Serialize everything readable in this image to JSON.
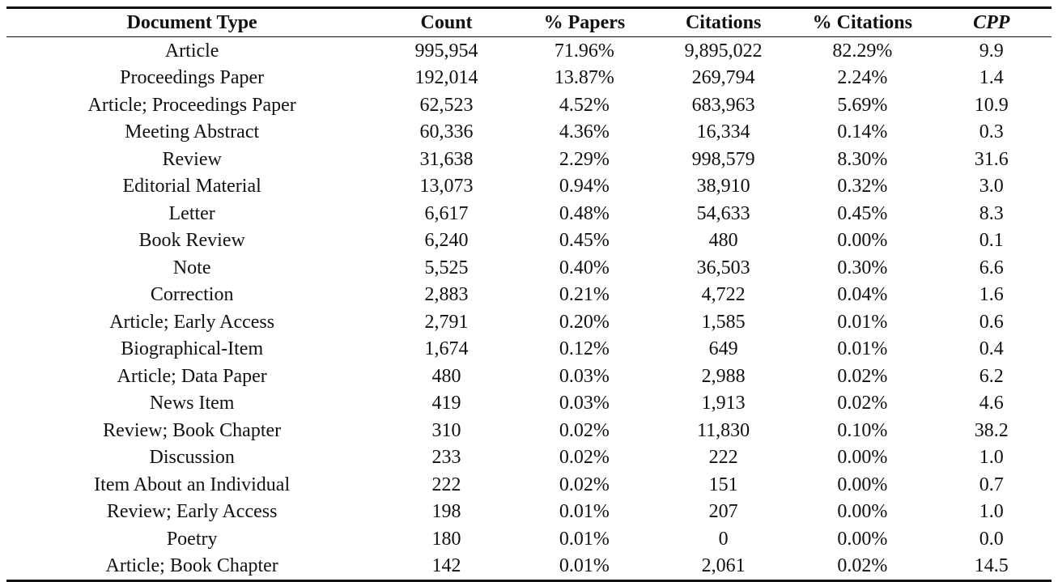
{
  "table": {
    "headers": {
      "type": "Document Type",
      "count": "Count",
      "pct_papers": "% Papers",
      "citations": "Citations",
      "pct_citations": "% Citations",
      "cpp": "CPP"
    },
    "rows": [
      {
        "type": "Article",
        "count": "995,954",
        "pct_papers": "71.96%",
        "citations": "9,895,022",
        "pct_citations": "82.29%",
        "cpp": "9.9"
      },
      {
        "type": "Proceedings Paper",
        "count": "192,014",
        "pct_papers": "13.87%",
        "citations": "269,794",
        "pct_citations": "2.24%",
        "cpp": "1.4"
      },
      {
        "type": "Article; Proceedings Paper",
        "count": "62,523",
        "pct_papers": "4.52%",
        "citations": "683,963",
        "pct_citations": "5.69%",
        "cpp": "10.9"
      },
      {
        "type": "Meeting Abstract",
        "count": "60,336",
        "pct_papers": "4.36%",
        "citations": "16,334",
        "pct_citations": "0.14%",
        "cpp": "0.3"
      },
      {
        "type": "Review",
        "count": "31,638",
        "pct_papers": "2.29%",
        "citations": "998,579",
        "pct_citations": "8.30%",
        "cpp": "31.6"
      },
      {
        "type": "Editorial Material",
        "count": "13,073",
        "pct_papers": "0.94%",
        "citations": "38,910",
        "pct_citations": "0.32%",
        "cpp": "3.0"
      },
      {
        "type": "Letter",
        "count": "6,617",
        "pct_papers": "0.48%",
        "citations": "54,633",
        "pct_citations": "0.45%",
        "cpp": "8.3"
      },
      {
        "type": "Book Review",
        "count": "6,240",
        "pct_papers": "0.45%",
        "citations": "480",
        "pct_citations": "0.00%",
        "cpp": "0.1"
      },
      {
        "type": "Note",
        "count": "5,525",
        "pct_papers": "0.40%",
        "citations": "36,503",
        "pct_citations": "0.30%",
        "cpp": "6.6"
      },
      {
        "type": "Correction",
        "count": "2,883",
        "pct_papers": "0.21%",
        "citations": "4,722",
        "pct_citations": "0.04%",
        "cpp": "1.6"
      },
      {
        "type": "Article; Early Access",
        "count": "2,791",
        "pct_papers": "0.20%",
        "citations": "1,585",
        "pct_citations": "0.01%",
        "cpp": "0.6"
      },
      {
        "type": "Biographical-Item",
        "count": "1,674",
        "pct_papers": "0.12%",
        "citations": "649",
        "pct_citations": "0.01%",
        "cpp": "0.4"
      },
      {
        "type": "Article; Data Paper",
        "count": "480",
        "pct_papers": "0.03%",
        "citations": "2,988",
        "pct_citations": "0.02%",
        "cpp": "6.2"
      },
      {
        "type": "News Item",
        "count": "419",
        "pct_papers": "0.03%",
        "citations": "1,913",
        "pct_citations": "0.02%",
        "cpp": "4.6"
      },
      {
        "type": "Review; Book Chapter",
        "count": "310",
        "pct_papers": "0.02%",
        "citations": "11,830",
        "pct_citations": "0.10%",
        "cpp": "38.2"
      },
      {
        "type": "Discussion",
        "count": "233",
        "pct_papers": "0.02%",
        "citations": "222",
        "pct_citations": "0.00%",
        "cpp": "1.0"
      },
      {
        "type": "Item About an Individual",
        "count": "222",
        "pct_papers": "0.02%",
        "citations": "151",
        "pct_citations": "0.00%",
        "cpp": "0.7"
      },
      {
        "type": "Review; Early Access",
        "count": "198",
        "pct_papers": "0.01%",
        "citations": "207",
        "pct_citations": "0.00%",
        "cpp": "1.0"
      },
      {
        "type": "Poetry",
        "count": "180",
        "pct_papers": "0.01%",
        "citations": "0",
        "pct_citations": "0.00%",
        "cpp": "0.0"
      },
      {
        "type": "Article; Book Chapter",
        "count": "142",
        "pct_papers": "0.01%",
        "citations": "2,061",
        "pct_citations": "0.02%",
        "cpp": "14.5"
      }
    ]
  }
}
